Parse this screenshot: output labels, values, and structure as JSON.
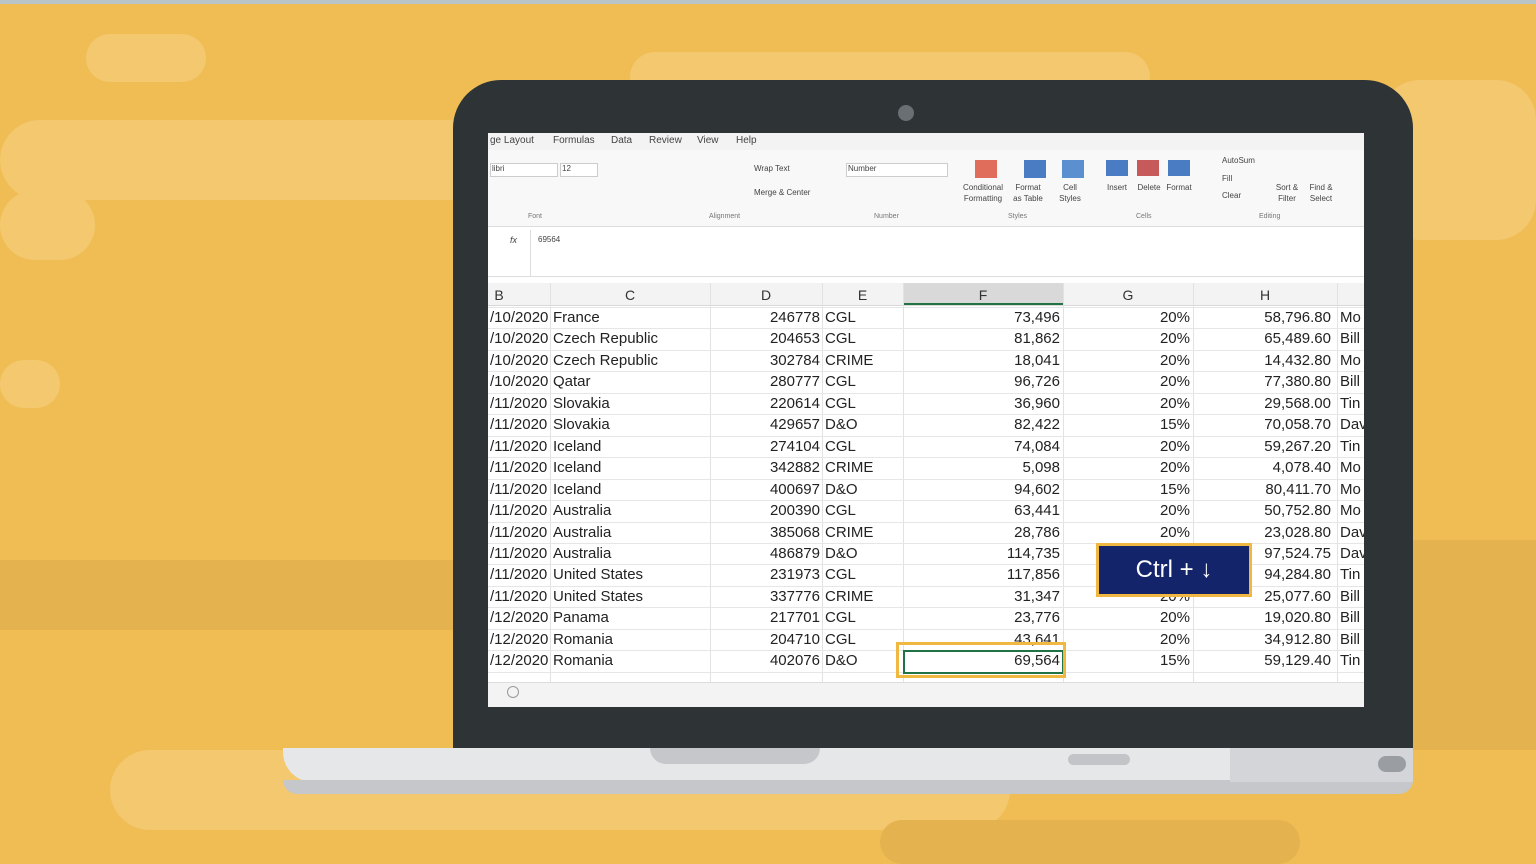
{
  "ribbon": {
    "tabs": [
      "ge Layout",
      "Formulas",
      "Data",
      "Review",
      "View",
      "Help"
    ],
    "font_name": "libri",
    "font_size": "12",
    "wrap_text": "Wrap Text",
    "merge_center": "Merge & Center",
    "number_format": "Number",
    "conditional_formatting": "Conditional Formatting",
    "format_as_table": "Format as Table",
    "cell_styles": "Cell Styles",
    "insert": "Insert",
    "delete": "Delete",
    "format": "Format",
    "autosum": "AutoSum",
    "fill": "Fill",
    "clear": "Clear",
    "sort_filter": "Sort & Filter",
    "find_select": "Find & Select",
    "groups": [
      "Font",
      "Alignment",
      "Number",
      "Styles",
      "Cells",
      "Editing"
    ]
  },
  "formula_bar": {
    "fx": "fx",
    "content": "69564"
  },
  "sheet": {
    "columns": [
      "B",
      "C",
      "D",
      "E",
      "F",
      "G",
      "H"
    ],
    "rows": [
      [
        "/10/2020",
        "France",
        "246778",
        "CGL",
        "73,496",
        "20%",
        "58,796.80",
        "Mo"
      ],
      [
        "/10/2020",
        "Czech Republic",
        "204653",
        "CGL",
        "81,862",
        "20%",
        "65,489.60",
        "Bill"
      ],
      [
        "/10/2020",
        "Czech Republic",
        "302784",
        "CRIME",
        "18,041",
        "20%",
        "14,432.80",
        "Mo"
      ],
      [
        "/10/2020",
        "Qatar",
        "280777",
        "CGL",
        "96,726",
        "20%",
        "77,380.80",
        "Bill"
      ],
      [
        "/11/2020",
        "Slovakia",
        "220614",
        "CGL",
        "36,960",
        "20%",
        "29,568.00",
        "Tin"
      ],
      [
        "/11/2020",
        "Slovakia",
        "429657",
        "D&O",
        "82,422",
        "15%",
        "70,058.70",
        "Dav"
      ],
      [
        "/11/2020",
        "Iceland",
        "274104",
        "CGL",
        "74,084",
        "20%",
        "59,267.20",
        "Tin"
      ],
      [
        "/11/2020",
        "Iceland",
        "342882",
        "CRIME",
        "5,098",
        "20%",
        "4,078.40",
        "Mo"
      ],
      [
        "/11/2020",
        "Iceland",
        "400697",
        "D&O",
        "94,602",
        "15%",
        "80,411.70",
        "Mo"
      ],
      [
        "/11/2020",
        "Australia",
        "200390",
        "CGL",
        "63,441",
        "20%",
        "50,752.80",
        "Mo"
      ],
      [
        "/11/2020",
        "Australia",
        "385068",
        "CRIME",
        "28,786",
        "20%",
        "23,028.80",
        "Dav"
      ],
      [
        "/11/2020",
        "Australia",
        "486879",
        "D&O",
        "114,735",
        null,
        "97,524.75",
        "Dav"
      ],
      [
        "/11/2020",
        "United States",
        "231973",
        "CGL",
        "117,856",
        null,
        "94,284.80",
        "Tin"
      ],
      [
        "/11/2020",
        "United States",
        "337776",
        "CRIME",
        "31,347",
        "20%",
        "25,077.60",
        "Bill"
      ],
      [
        "/12/2020",
        "Panama",
        "217701",
        "CGL",
        "23,776",
        "20%",
        "19,020.80",
        "Bill"
      ],
      [
        "/12/2020",
        "Romania",
        "204710",
        "CGL",
        "43,641",
        "20%",
        "34,912.80",
        "Bill"
      ],
      [
        "/12/2020",
        "Romania",
        "402076",
        "D&O",
        "69,564",
        "15%",
        "59,129.40",
        "Tin"
      ]
    ]
  },
  "callout": "Ctrl + ↓"
}
